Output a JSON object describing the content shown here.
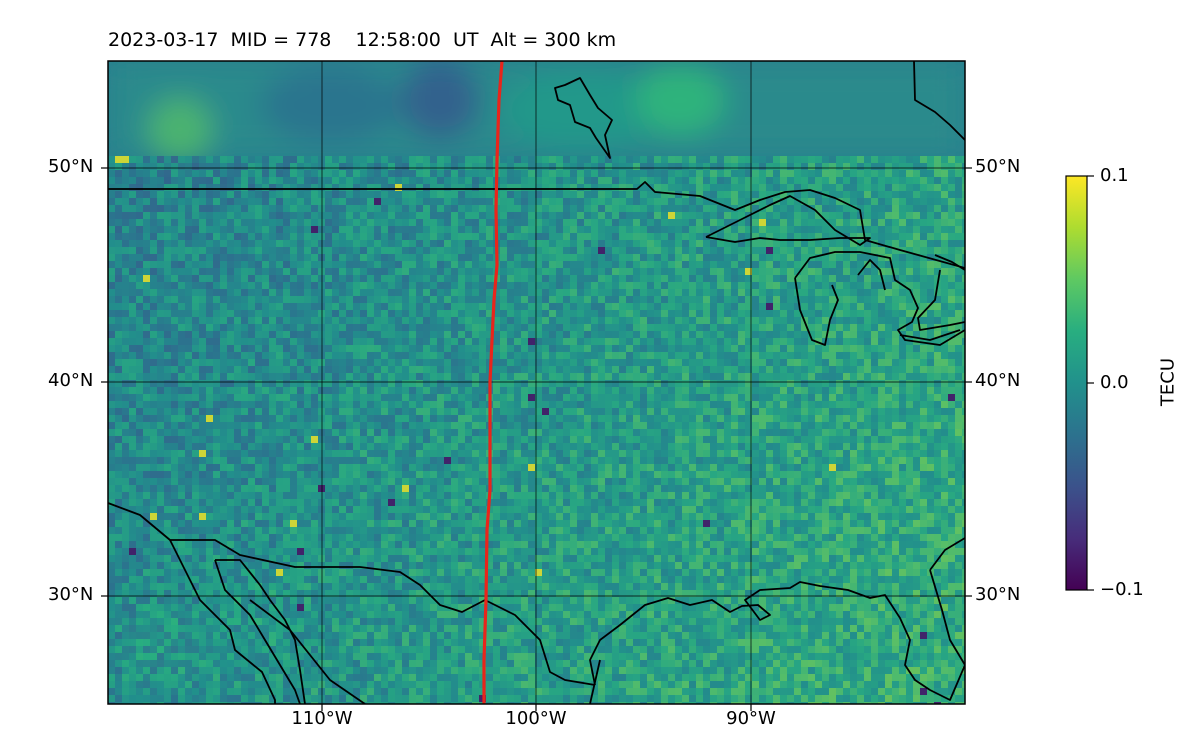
{
  "title": "2023-03-17  MID = 778    12:58:00  UT  Alt = 300 km",
  "map": {
    "lon_range": [
      -120,
      -80
    ],
    "lat_range": [
      25,
      55
    ],
    "lat_ticks": [
      {
        "value": 50,
        "label": "50°N"
      },
      {
        "value": 40,
        "label": "40°N"
      },
      {
        "value": 30,
        "label": "30°N"
      }
    ],
    "lon_ticks": [
      {
        "value": -110,
        "label": "110°W"
      },
      {
        "value": -100,
        "label": "100°W"
      },
      {
        "value": -90,
        "label": "90°W"
      }
    ],
    "grid": true,
    "terminator_color": "#e8251b",
    "coastline_color": "#000000"
  },
  "colorbar": {
    "label": "TECU",
    "colormap": "viridis",
    "range": [
      -0.1,
      0.1
    ],
    "ticks": [
      {
        "value": 0.1,
        "label": "0.1"
      },
      {
        "value": 0.0,
        "label": "0.0"
      },
      {
        "value": -0.1,
        "label": "−0.1"
      }
    ]
  }
}
